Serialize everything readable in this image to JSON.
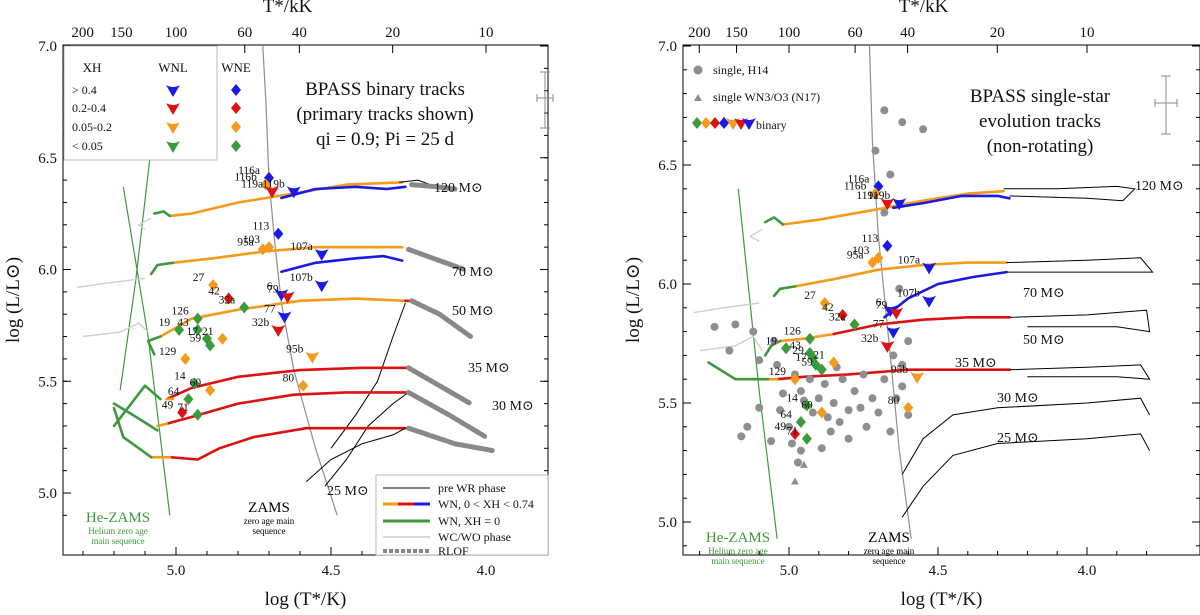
{
  "chart_data": [
    {
      "type": "scatter",
      "title": "BPASS binary tracks",
      "subtitle_lines": [
        "(primary tracks shown)",
        "qi = 0.9; Pi = 25 d"
      ],
      "xlabel": "log (T*/K)",
      "ylabel": "log (L/L⊙)",
      "top_xlabel": "T*/kK",
      "xlim": [
        5.32,
        3.78
      ],
      "ylim": [
        4.9,
        7.0
      ],
      "x_ticks": [
        "5.0",
        "4.5",
        "4.0"
      ],
      "y_ticks": [
        "5.0",
        "5.5",
        "6.0",
        "6.5",
        "7.0"
      ],
      "top_ticks": [
        "200",
        "150",
        "100",
        "60",
        "40",
        "20",
        "10"
      ],
      "legend_header": [
        "XH",
        "WNL",
        "WNE"
      ],
      "legend_rows": [
        "> 0.4",
        "0.2-0.4",
        "0.05-0.2",
        "< 0.05"
      ],
      "line_legend": [
        "pre WR phase",
        "WN,  0 < XH < 0.74",
        "WN,  XH = 0",
        "WC/WO phase",
        "RLOF"
      ],
      "zams_label": "ZAMS",
      "zams_sub": [
        "zero age main",
        "sequence"
      ],
      "hezams_label": "He-ZAMS",
      "hezams_sub": [
        "Helium zero age",
        "main sequence"
      ],
      "mass_labels": [
        "120 M⊙",
        "70 M⊙",
        "50 M⊙",
        "35 M⊙",
        "30 M⊙",
        "25 M⊙"
      ],
      "stars": [
        {
          "id": "116a",
          "x": 4.7,
          "y": 6.41,
          "c": "blue",
          "s": "d"
        },
        {
          "id": "116b",
          "x": 4.71,
          "y": 6.38,
          "c": "orange",
          "s": "d"
        },
        {
          "id": "119a",
          "x": 4.69,
          "y": 6.35,
          "c": "red",
          "s": "v"
        },
        {
          "id": "119b",
          "x": 4.62,
          "y": 6.35,
          "c": "blue",
          "s": "v"
        },
        {
          "id": "113",
          "x": 4.67,
          "y": 6.16,
          "c": "blue",
          "s": "d"
        },
        {
          "id": "95a",
          "x": 4.72,
          "y": 6.09,
          "c": "orange",
          "s": "d"
        },
        {
          "id": "103",
          "x": 4.7,
          "y": 6.1,
          "c": "orange",
          "s": "d"
        },
        {
          "id": "107a",
          "x": 4.53,
          "y": 6.07,
          "c": "blue",
          "s": "v"
        },
        {
          "id": "107b",
          "x": 4.53,
          "y": 5.93,
          "c": "blue",
          "s": "v"
        },
        {
          "id": "27",
          "x": 4.88,
          "y": 5.93,
          "c": "orange",
          "s": "d"
        },
        {
          "id": "42",
          "x": 4.83,
          "y": 5.87,
          "c": "red",
          "s": "d"
        },
        {
          "id": "32a",
          "x": 4.78,
          "y": 5.83,
          "c": "green",
          "s": "d"
        },
        {
          "id": "6",
          "x": 4.66,
          "y": 5.89,
          "c": "blue",
          "s": "v"
        },
        {
          "id": "79",
          "x": 4.64,
          "y": 5.88,
          "c": "red",
          "s": "v"
        },
        {
          "id": "77",
          "x": 4.65,
          "y": 5.79,
          "c": "blue",
          "s": "v"
        },
        {
          "id": "32b",
          "x": 4.67,
          "y": 5.73,
          "c": "red",
          "s": "v"
        },
        {
          "id": "126",
          "x": 4.93,
          "y": 5.78,
          "c": "green",
          "s": "d"
        },
        {
          "id": "43",
          "x": 4.93,
          "y": 5.73,
          "c": "green",
          "s": "d"
        },
        {
          "id": "19",
          "x": 4.99,
          "y": 5.73,
          "c": "green",
          "s": "d"
        },
        {
          "id": "17",
          "x": 4.9,
          "y": 5.69,
          "c": "green",
          "s": "d"
        },
        {
          "id": "21",
          "x": 4.85,
          "y": 5.69,
          "c": "orange",
          "s": "d"
        },
        {
          "id": "59",
          "x": 4.89,
          "y": 5.66,
          "c": "green",
          "s": "d"
        },
        {
          "id": "129",
          "x": 4.97,
          "y": 5.6,
          "c": "orange",
          "s": "d"
        },
        {
          "id": "95b",
          "x": 4.56,
          "y": 5.61,
          "c": "orange",
          "s": "v"
        },
        {
          "id": "80",
          "x": 4.59,
          "y": 5.48,
          "c": "orange",
          "s": "d"
        },
        {
          "id": "14",
          "x": 4.94,
          "y": 5.49,
          "c": "green",
          "s": "d"
        },
        {
          "id": "60",
          "x": 4.89,
          "y": 5.46,
          "c": "orange",
          "s": "d"
        },
        {
          "id": "64",
          "x": 4.96,
          "y": 5.42,
          "c": "green",
          "s": "d"
        },
        {
          "id": "49",
          "x": 4.98,
          "y": 5.36,
          "c": "red",
          "s": "d"
        },
        {
          "id": "71",
          "x": 4.93,
          "y": 5.35,
          "c": "green",
          "s": "d"
        }
      ]
    },
    {
      "type": "scatter",
      "title": "BPASS single-star",
      "subtitle_lines": [
        "evolution tracks",
        "(non-rotating)"
      ],
      "xlabel": "log (T*/K)",
      "ylabel": "log (L/L⊙)",
      "top_xlabel": "T*/kK",
      "xlim": [
        5.32,
        3.78
      ],
      "ylim": [
        4.93,
        7.0
      ],
      "x_ticks": [
        "5.0",
        "4.5",
        "4.0"
      ],
      "y_ticks": [
        "5.0",
        "5.5",
        "6.0",
        "6.5",
        "7.0"
      ],
      "top_ticks": [
        "200",
        "150",
        "100",
        "60",
        "40",
        "20",
        "10"
      ],
      "legend_points": [
        "single, H14",
        "single WN3/O3 (N17)",
        "binary"
      ],
      "zams_label": "ZAMS",
      "zams_sub": [
        "zero age main",
        "sequence"
      ],
      "hezams_label": "He-ZAMS",
      "hezams_sub": [
        "Helium zero age",
        "main sequence"
      ],
      "mass_labels": [
        "120 M⊙",
        "70 M⊙",
        "50 M⊙",
        "35 M⊙",
        "30 M⊙",
        "25 M⊙"
      ],
      "stars": [
        {
          "id": "116a",
          "x": 4.7,
          "y": 6.41,
          "c": "blue",
          "s": "d"
        },
        {
          "id": "116b",
          "x": 4.71,
          "y": 6.38,
          "c": "orange",
          "s": "d"
        },
        {
          "id": "119a",
          "x": 4.67,
          "y": 6.34,
          "c": "red",
          "s": "v"
        },
        {
          "id": "119b",
          "x": 4.63,
          "y": 6.34,
          "c": "blue",
          "s": "v"
        },
        {
          "id": "113",
          "x": 4.67,
          "y": 6.16,
          "c": "blue",
          "s": "d"
        },
        {
          "id": "95a",
          "x": 4.72,
          "y": 6.09,
          "c": "orange",
          "s": "d"
        },
        {
          "id": "103",
          "x": 4.7,
          "y": 6.11,
          "c": "orange",
          "s": "d"
        },
        {
          "id": "107a",
          "x": 4.53,
          "y": 6.07,
          "c": "blue",
          "s": "v"
        },
        {
          "id": "107b",
          "x": 4.53,
          "y": 5.93,
          "c": "blue",
          "s": "v"
        },
        {
          "id": "27",
          "x": 4.88,
          "y": 5.92,
          "c": "orange",
          "s": "d"
        },
        {
          "id": "42",
          "x": 4.82,
          "y": 5.87,
          "c": "red",
          "s": "d"
        },
        {
          "id": "32a",
          "x": 4.78,
          "y": 5.83,
          "c": "green",
          "s": "d"
        },
        {
          "id": "6",
          "x": 4.66,
          "y": 5.89,
          "c": "blue",
          "s": "v"
        },
        {
          "id": "79",
          "x": 4.64,
          "y": 5.88,
          "c": "red",
          "s": "v"
        },
        {
          "id": "77",
          "x": 4.65,
          "y": 5.8,
          "c": "blue",
          "s": "v"
        },
        {
          "id": "32b",
          "x": 4.67,
          "y": 5.74,
          "c": "red",
          "s": "v"
        },
        {
          "id": "126",
          "x": 4.93,
          "y": 5.77,
          "c": "green",
          "s": "d"
        },
        {
          "id": "43",
          "x": 4.93,
          "y": 5.71,
          "c": "green",
          "s": "d"
        },
        {
          "id": "19",
          "x": 5.01,
          "y": 5.73,
          "c": "green",
          "s": "d"
        },
        {
          "id": "29",
          "x": 4.92,
          "y": 5.69,
          "c": "green",
          "s": "d"
        },
        {
          "id": "17",
          "x": 4.91,
          "y": 5.66,
          "c": "green",
          "s": "d"
        },
        {
          "id": "21",
          "x": 4.85,
          "y": 5.67,
          "c": "orange",
          "s": "d"
        },
        {
          "id": "59",
          "x": 4.89,
          "y": 5.64,
          "c": "green",
          "s": "d"
        },
        {
          "id": "129",
          "x": 4.98,
          "y": 5.6,
          "c": "orange",
          "s": "d"
        },
        {
          "id": "95b",
          "x": 4.57,
          "y": 5.61,
          "c": "orange",
          "s": "v"
        },
        {
          "id": "80",
          "x": 4.6,
          "y": 5.48,
          "c": "orange",
          "s": "d"
        },
        {
          "id": "14",
          "x": 4.94,
          "y": 5.49,
          "c": "green",
          "s": "d"
        },
        {
          "id": "60",
          "x": 4.89,
          "y": 5.46,
          "c": "orange",
          "s": "d"
        },
        {
          "id": "64",
          "x": 4.96,
          "y": 5.42,
          "c": "green",
          "s": "d"
        },
        {
          "id": "49",
          "x": 4.98,
          "y": 5.37,
          "c": "red",
          "s": "d"
        },
        {
          "id": "71",
          "x": 4.94,
          "y": 5.35,
          "c": "green",
          "s": "d"
        }
      ],
      "h14_points": [
        [
          5.25,
          5.82
        ],
        [
          5.18,
          5.83
        ],
        [
          5.2,
          5.72
        ],
        [
          5.12,
          5.8
        ],
        [
          5.1,
          5.68
        ],
        [
          5.05,
          5.76
        ],
        [
          5.04,
          5.66
        ],
        [
          5.02,
          5.54
        ],
        [
          4.98,
          5.62
        ],
        [
          4.96,
          5.55
        ],
        [
          4.95,
          5.51
        ],
        [
          4.93,
          5.6
        ],
        [
          4.92,
          5.46
        ],
        [
          4.9,
          5.52
        ],
        [
          4.88,
          5.58
        ],
        [
          4.87,
          5.44
        ],
        [
          4.85,
          5.5
        ],
        [
          4.83,
          5.42
        ],
        [
          4.82,
          5.6
        ],
        [
          4.8,
          5.47
        ],
        [
          4.78,
          5.55
        ],
        [
          4.76,
          5.48
        ],
        [
          4.74,
          5.4
        ],
        [
          4.72,
          5.52
        ],
        [
          4.7,
          5.46
        ],
        [
          4.68,
          5.6
        ],
        [
          4.66,
          5.38
        ],
        [
          4.64,
          5.52
        ],
        [
          4.62,
          5.57
        ],
        [
          4.6,
          5.45
        ],
        [
          4.62,
          5.66
        ],
        [
          4.65,
          5.7
        ],
        [
          4.6,
          5.76
        ],
        [
          4.63,
          5.98
        ],
        [
          4.68,
          6.3
        ],
        [
          4.66,
          6.46
        ],
        [
          4.62,
          6.68
        ],
        [
          4.68,
          6.73
        ],
        [
          4.55,
          6.65
        ],
        [
          4.71,
          6.56
        ],
        [
          5.0,
          5.4
        ],
        [
          5.03,
          5.47
        ],
        [
          5.1,
          5.48
        ],
        [
          4.99,
          5.33
        ],
        [
          4.96,
          5.3
        ],
        [
          4.97,
          5.25
        ],
        [
          4.8,
          5.35
        ],
        [
          4.86,
          5.38
        ],
        [
          5.16,
          5.36
        ],
        [
          5.14,
          5.4
        ],
        [
          5.06,
          5.34
        ],
        [
          4.89,
          5.31
        ],
        [
          4.75,
          5.62
        ],
        [
          4.84,
          5.65
        ]
      ],
      "n17_points": [
        [
          4.98,
          5.17
        ],
        [
          4.95,
          5.24
        ]
      ]
    }
  ],
  "colors": {
    "blue": "#1a1ae6",
    "red": "#dd1111",
    "orange": "#f59a1a",
    "green": "#3c9a3c",
    "grey": "#8e8e8e",
    "hezams": "#3c9a3c",
    "zams": "#8e8e8e"
  }
}
